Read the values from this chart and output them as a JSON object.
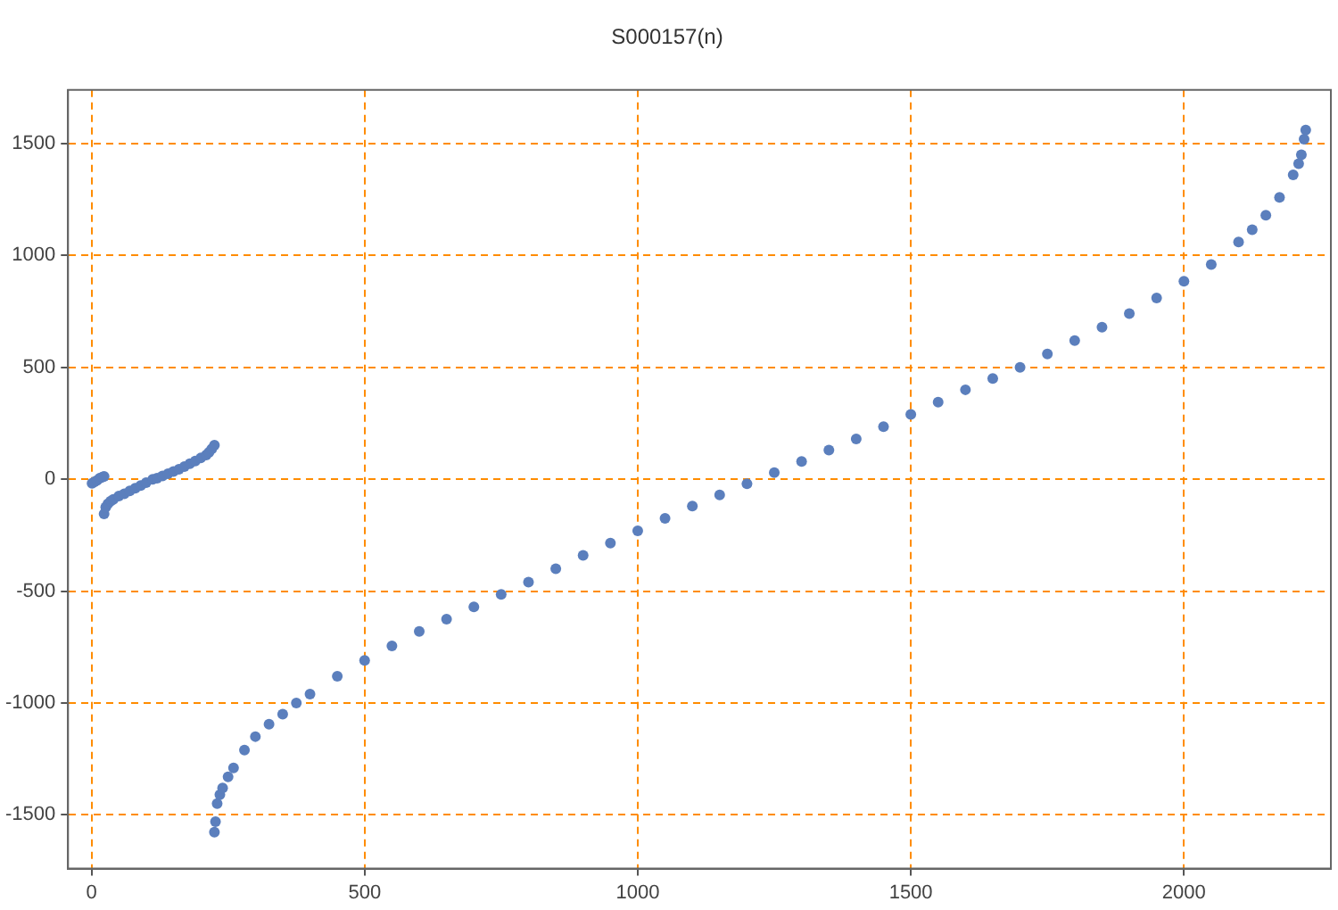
{
  "chart_data": {
    "type": "scatter",
    "title": "S000157(n)",
    "series": [
      {
        "color": "#5b7fbd",
        "x": [
          1,
          5,
          10,
          15,
          20,
          23,
          23,
          26,
          30,
          35,
          40,
          50,
          60,
          70,
          80,
          90,
          100,
          112,
          120,
          130,
          140,
          150,
          160,
          170,
          180,
          190,
          200,
          210,
          215,
          220,
          225,
          225,
          227,
          230,
          235,
          240,
          250,
          260,
          280,
          300,
          325,
          350,
          375,
          400,
          450,
          500,
          550,
          600,
          650,
          700,
          750,
          800,
          850,
          900,
          950,
          1000,
          1050,
          1100,
          1150,
          1200,
          1250,
          1300,
          1350,
          1400,
          1450,
          1500,
          1550,
          1600,
          1650,
          1700,
          1750,
          1800,
          1850,
          1900,
          1950,
          2000,
          2050,
          2100,
          2125,
          2150,
          2175,
          2200,
          2210,
          2215,
          2220,
          2223
        ],
        "values": [
          -18,
          -12,
          -5,
          5,
          10,
          13,
          -155,
          -125,
          -110,
          -98,
          -90,
          -75,
          -65,
          -52,
          -40,
          -28,
          -15,
          0,
          5,
          15,
          25,
          35,
          45,
          57,
          70,
          82,
          95,
          108,
          120,
          135,
          152,
          -1577,
          -1530,
          -1450,
          -1410,
          -1380,
          -1330,
          -1290,
          -1210,
          -1150,
          -1095,
          -1050,
          -1000,
          -960,
          -880,
          -810,
          -745,
          -680,
          -625,
          -570,
          -515,
          -460,
          -400,
          -340,
          -285,
          -230,
          -175,
          -120,
          -70,
          -20,
          30,
          80,
          130,
          180,
          235,
          290,
          345,
          400,
          450,
          500,
          560,
          620,
          680,
          740,
          810,
          885,
          960,
          1060,
          1115,
          1180,
          1260,
          1360,
          1410,
          1450,
          1520,
          1561
        ]
      }
    ],
    "xlim": [
      -43,
      2269
    ],
    "ylim": [
      -1740,
      1740
    ],
    "xticks": [
      0,
      500,
      1000,
      1500,
      2000
    ],
    "yticks": [
      -1500,
      -1000,
      -500,
      0,
      500,
      1000,
      1500
    ],
    "grid": true,
    "legend": false,
    "marker": "circle"
  }
}
